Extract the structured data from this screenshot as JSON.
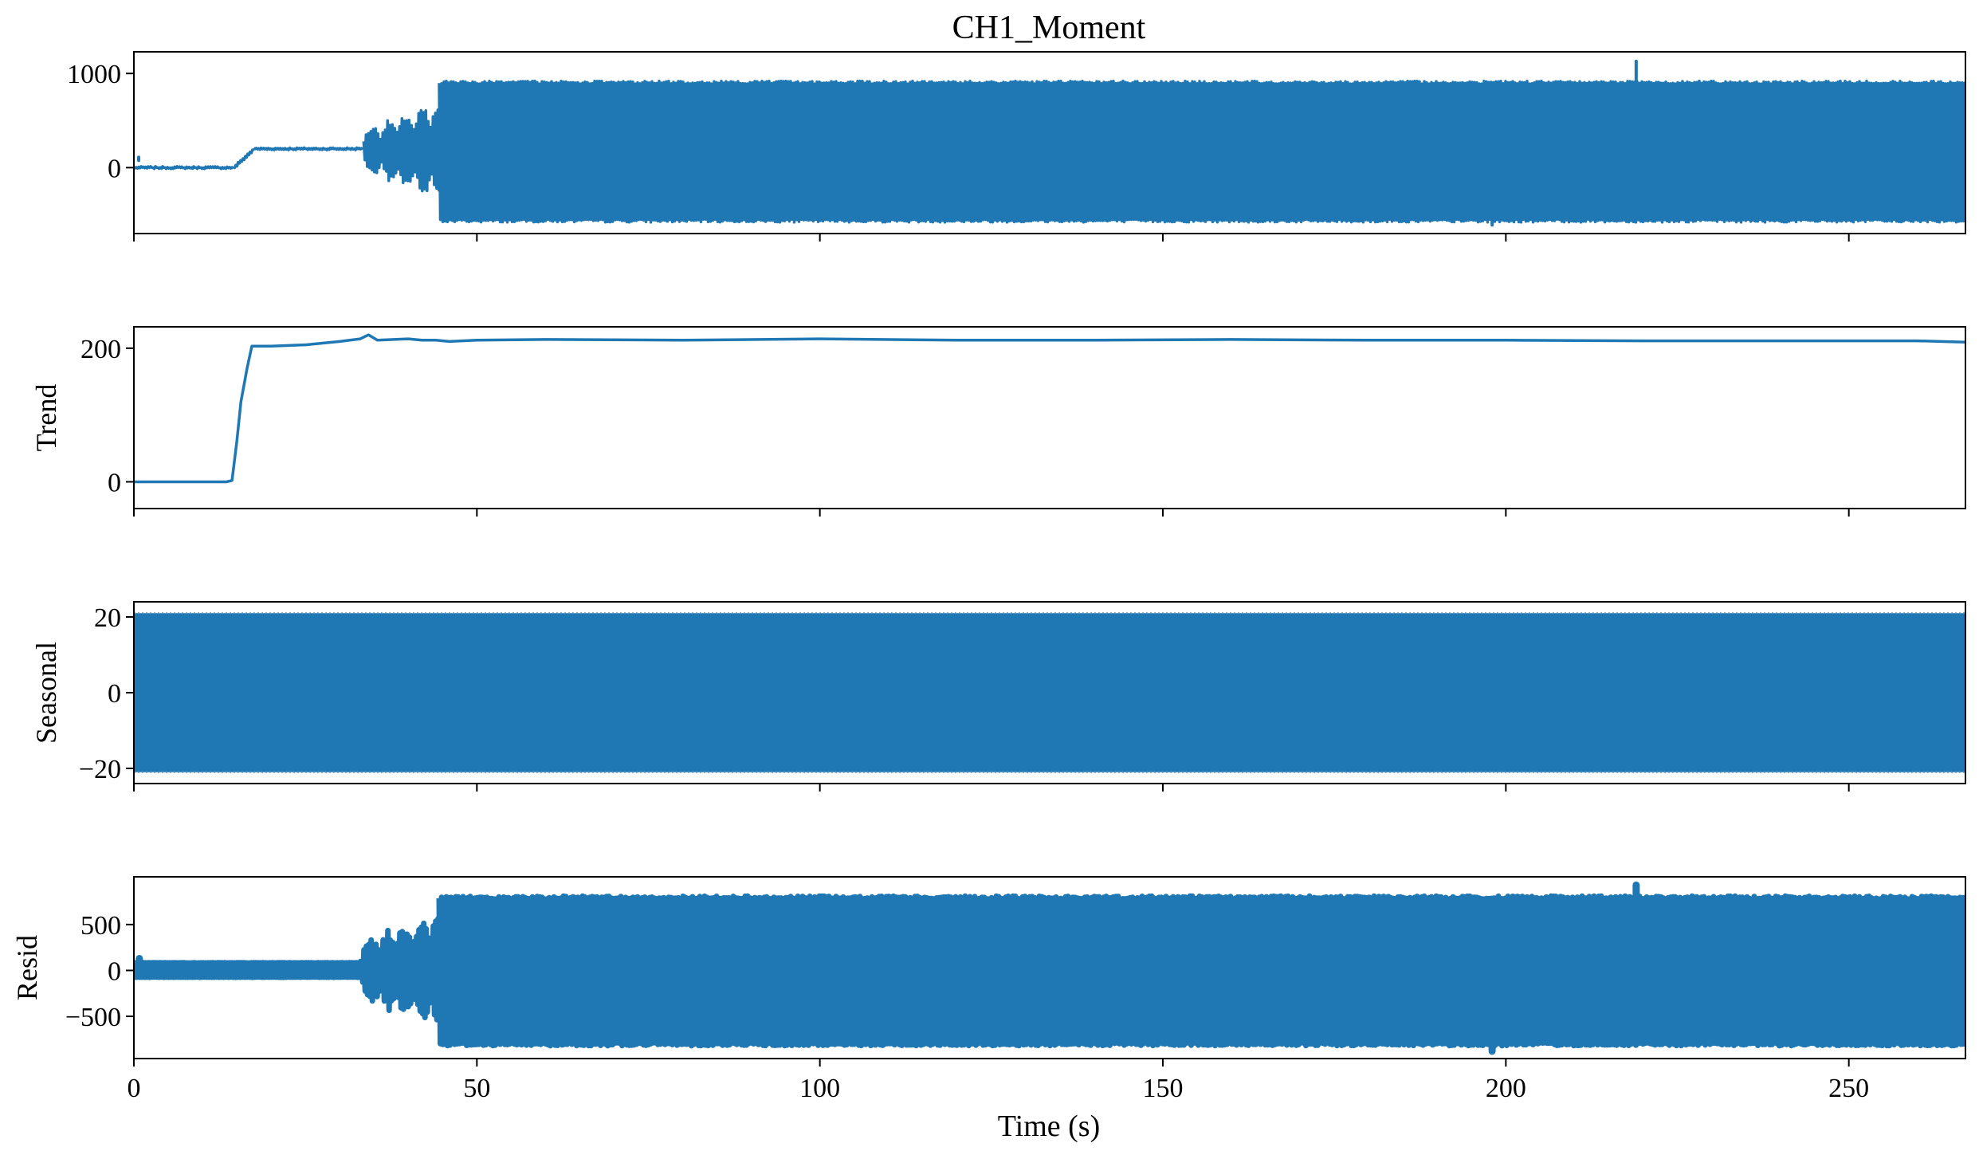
{
  "title": "CH1_Moment",
  "series_color": "#1f77b4",
  "xlabel": "Time (s)",
  "chart_data": {
    "type": "line",
    "title": "CH1_Moment",
    "xlabel": "Time (s)",
    "xlim": [
      0,
      267
    ],
    "xticks": [
      0,
      50,
      100,
      150,
      200,
      250
    ],
    "xtick_labels": [
      "0",
      "50",
      "100",
      "150",
      "200",
      "250"
    ],
    "grid": false,
    "legend": "none",
    "panels": [
      {
        "ylabel": "",
        "ylim": [
          -700,
          1230
        ],
        "yticks": [
          0,
          1000
        ],
        "ytick_labels": [
          "0",
          "1000"
        ],
        "style": "signal",
        "segments": [
          {
            "x": [
              0,
              14.5
            ],
            "center": 0,
            "amp": 0
          },
          {
            "x": [
              14.5,
              17.5
            ],
            "center": [
              0,
              200
            ],
            "amp": 0
          },
          {
            "x": [
              17.5,
              33.5
            ],
            "center": 200,
            "amp": 0
          },
          {
            "x": [
              33.5,
              44.5
            ],
            "center": 180,
            "amp": 380,
            "burst": true
          },
          {
            "x": [
              44.5,
              267
            ],
            "center": 180,
            "amp": 740,
            "upper": 920,
            "lower": -580
          }
        ],
        "spikes": [
          {
            "x": 0.7,
            "y": 110
          },
          {
            "x": 219,
            "y": 1130
          },
          {
            "x": 198,
            "y": -610
          }
        ]
      },
      {
        "ylabel": "Trend",
        "ylim": [
          -40,
          232
        ],
        "yticks": [
          0,
          200
        ],
        "ytick_labels": [
          "0",
          "200"
        ],
        "style": "line",
        "points": [
          [
            0,
            0
          ],
          [
            13.5,
            0
          ],
          [
            14.3,
            2
          ],
          [
            15.0,
            60
          ],
          [
            15.6,
            120
          ],
          [
            16.5,
            170
          ],
          [
            17.2,
            203
          ],
          [
            20,
            203
          ],
          [
            25,
            205
          ],
          [
            30,
            210
          ],
          [
            33,
            214
          ],
          [
            34.2,
            220
          ],
          [
            35.5,
            212
          ],
          [
            40,
            214
          ],
          [
            42,
            212
          ],
          [
            44,
            212
          ],
          [
            46,
            210
          ],
          [
            50,
            212
          ],
          [
            60,
            213
          ],
          [
            80,
            212
          ],
          [
            100,
            214
          ],
          [
            120,
            212
          ],
          [
            140,
            212
          ],
          [
            160,
            213
          ],
          [
            180,
            212
          ],
          [
            200,
            212
          ],
          [
            220,
            211
          ],
          [
            240,
            211
          ],
          [
            260,
            211
          ],
          [
            267,
            209
          ]
        ]
      },
      {
        "ylabel": "Seasonal",
        "ylim": [
          -24,
          24
        ],
        "yticks": [
          -20,
          0,
          20
        ],
        "ytick_labels": [
          "−20",
          "0",
          "20"
        ],
        "style": "band",
        "band": [
          -21,
          21
        ]
      },
      {
        "ylabel": "Resid",
        "ylim": [
          -960,
          1020
        ],
        "yticks": [
          -500,
          0,
          500
        ],
        "ytick_labels": [
          "−500",
          "0",
          "500"
        ],
        "style": "signal",
        "segments": [
          {
            "x": [
              0,
              33.2
            ],
            "center": 0,
            "amp": 80,
            "upper": 85,
            "lower": -75
          },
          {
            "x": [
              33.2,
              44.5
            ],
            "center": 0,
            "amp": 500,
            "burst": true
          },
          {
            "x": [
              44.5,
              267
            ],
            "center": 0,
            "amp": 800,
            "upper": 810,
            "lower": -820
          }
        ],
        "spikes": [
          {
            "x": 0.8,
            "y": 130
          },
          {
            "x": 219,
            "y": 930
          },
          {
            "x": 198,
            "y": -880
          }
        ]
      }
    ]
  }
}
